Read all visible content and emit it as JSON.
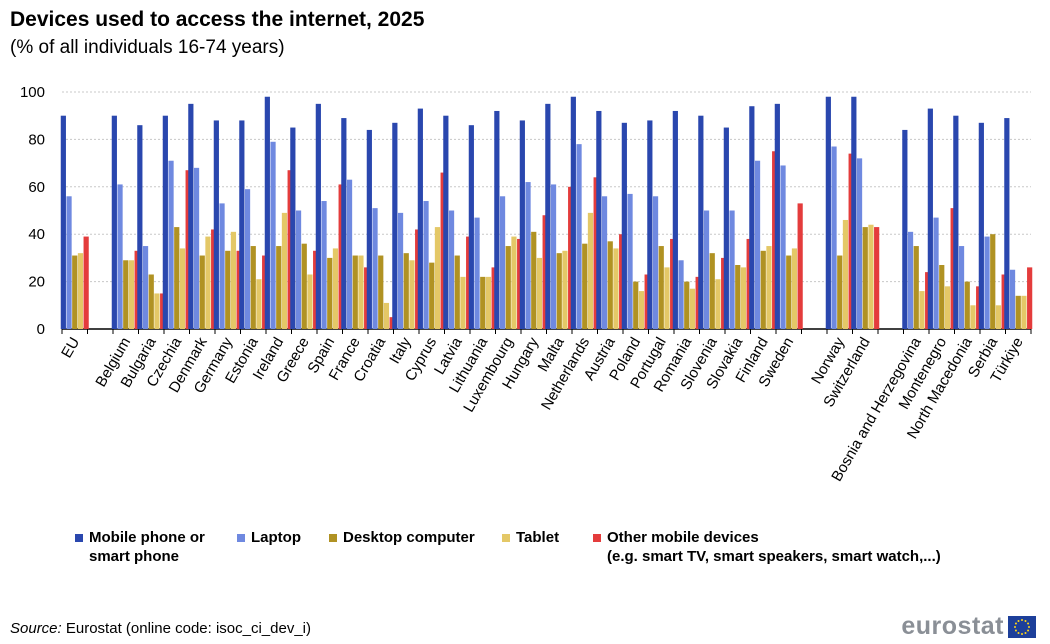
{
  "chart_data": {
    "type": "bar",
    "title": "Devices used to access the internet, 2025",
    "subtitle": "(% of all individuals  16-74 years)",
    "ylim": [
      0,
      100
    ],
    "yticks": [
      0,
      20,
      40,
      60,
      80,
      100
    ],
    "grid": true,
    "legend_position": "bottom",
    "categories": [
      "EU",
      "Belgium",
      "Bulgaria",
      "Czechia",
      "Denmark",
      "Germany",
      "Estonia",
      "Ireland",
      "Greece",
      "Spain",
      "France",
      "Croatia",
      "Italy",
      "Cyprus",
      "Latvia",
      "Lithuania",
      "Luxembourg",
      "Hungary",
      "Malta",
      "Netherlands",
      "Austria",
      "Poland",
      "Portugal",
      "Romania",
      "Slovenia",
      "Slovakia",
      "Finland",
      "Sweden",
      "Norway",
      "Switzerland",
      "Bosnia and Herzegovina",
      "Montenegro",
      "North Macedonia",
      "Serbia",
      "Türkiye"
    ],
    "series": [
      {
        "name": "Mobile phone or smart phone",
        "color": "#2a47ae",
        "values": [
          90,
          90,
          86,
          90,
          95,
          88,
          88,
          98,
          85,
          95,
          89,
          84,
          87,
          93,
          90,
          86,
          92,
          88,
          95,
          98,
          92,
          87,
          88,
          92,
          90,
          85,
          94,
          95,
          98,
          98,
          84,
          93,
          90,
          87,
          89
        ]
      },
      {
        "name": "Laptop",
        "color": "#6f89e0",
        "values": [
          56,
          61,
          35,
          71,
          68,
          53,
          59,
          79,
          50,
          54,
          63,
          51,
          49,
          54,
          50,
          47,
          56,
          62,
          61,
          78,
          56,
          57,
          56,
          29,
          50,
          50,
          71,
          69,
          77,
          72,
          41,
          47,
          35,
          39,
          25
        ]
      },
      {
        "name": "Desktop computer",
        "color": "#b09223",
        "values": [
          31,
          29,
          23,
          43,
          31,
          33,
          35,
          35,
          36,
          30,
          31,
          31,
          32,
          28,
          31,
          22,
          35,
          41,
          32,
          36,
          37,
          20,
          35,
          20,
          32,
          27,
          33,
          31,
          31,
          43,
          35,
          27,
          20,
          40,
          14
        ]
      },
      {
        "name": "Tablet",
        "color": "#e4c867",
        "values": [
          32,
          29,
          15,
          34,
          39,
          41,
          21,
          49,
          23,
          34,
          31,
          11,
          29,
          43,
          22,
          22,
          39,
          30,
          33,
          49,
          34,
          16,
          26,
          17,
          21,
          26,
          35,
          34,
          46,
          44,
          16,
          18,
          10,
          10,
          14
        ]
      },
      {
        "name": "Other mobile devices",
        "color": "#e43c3c",
        "values": [
          39,
          33,
          15,
          67,
          42,
          33,
          31,
          67,
          33,
          61,
          26,
          5,
          42,
          66,
          39,
          26,
          38,
          48,
          60,
          64,
          40,
          23,
          38,
          22,
          30,
          38,
          75,
          53,
          74,
          43,
          24,
          51,
          18,
          23,
          26
        ]
      }
    ]
  },
  "legend": [
    {
      "line1": "Mobile phone or",
      "line2": "smart phone"
    },
    {
      "line1": "Laptop",
      "line2": ""
    },
    {
      "line1": "Desktop computer",
      "line2": ""
    },
    {
      "line1": "Tablet",
      "line2": ""
    },
    {
      "line1": "Other mobile devices",
      "line2": "(e.g. smart TV, smart speakers, smart watch,...)"
    }
  ],
  "source": {
    "label": "Source:",
    "text": " Eurostat (online code: isoc_ci_dev_i)"
  },
  "logo": {
    "text": "eurostat"
  }
}
